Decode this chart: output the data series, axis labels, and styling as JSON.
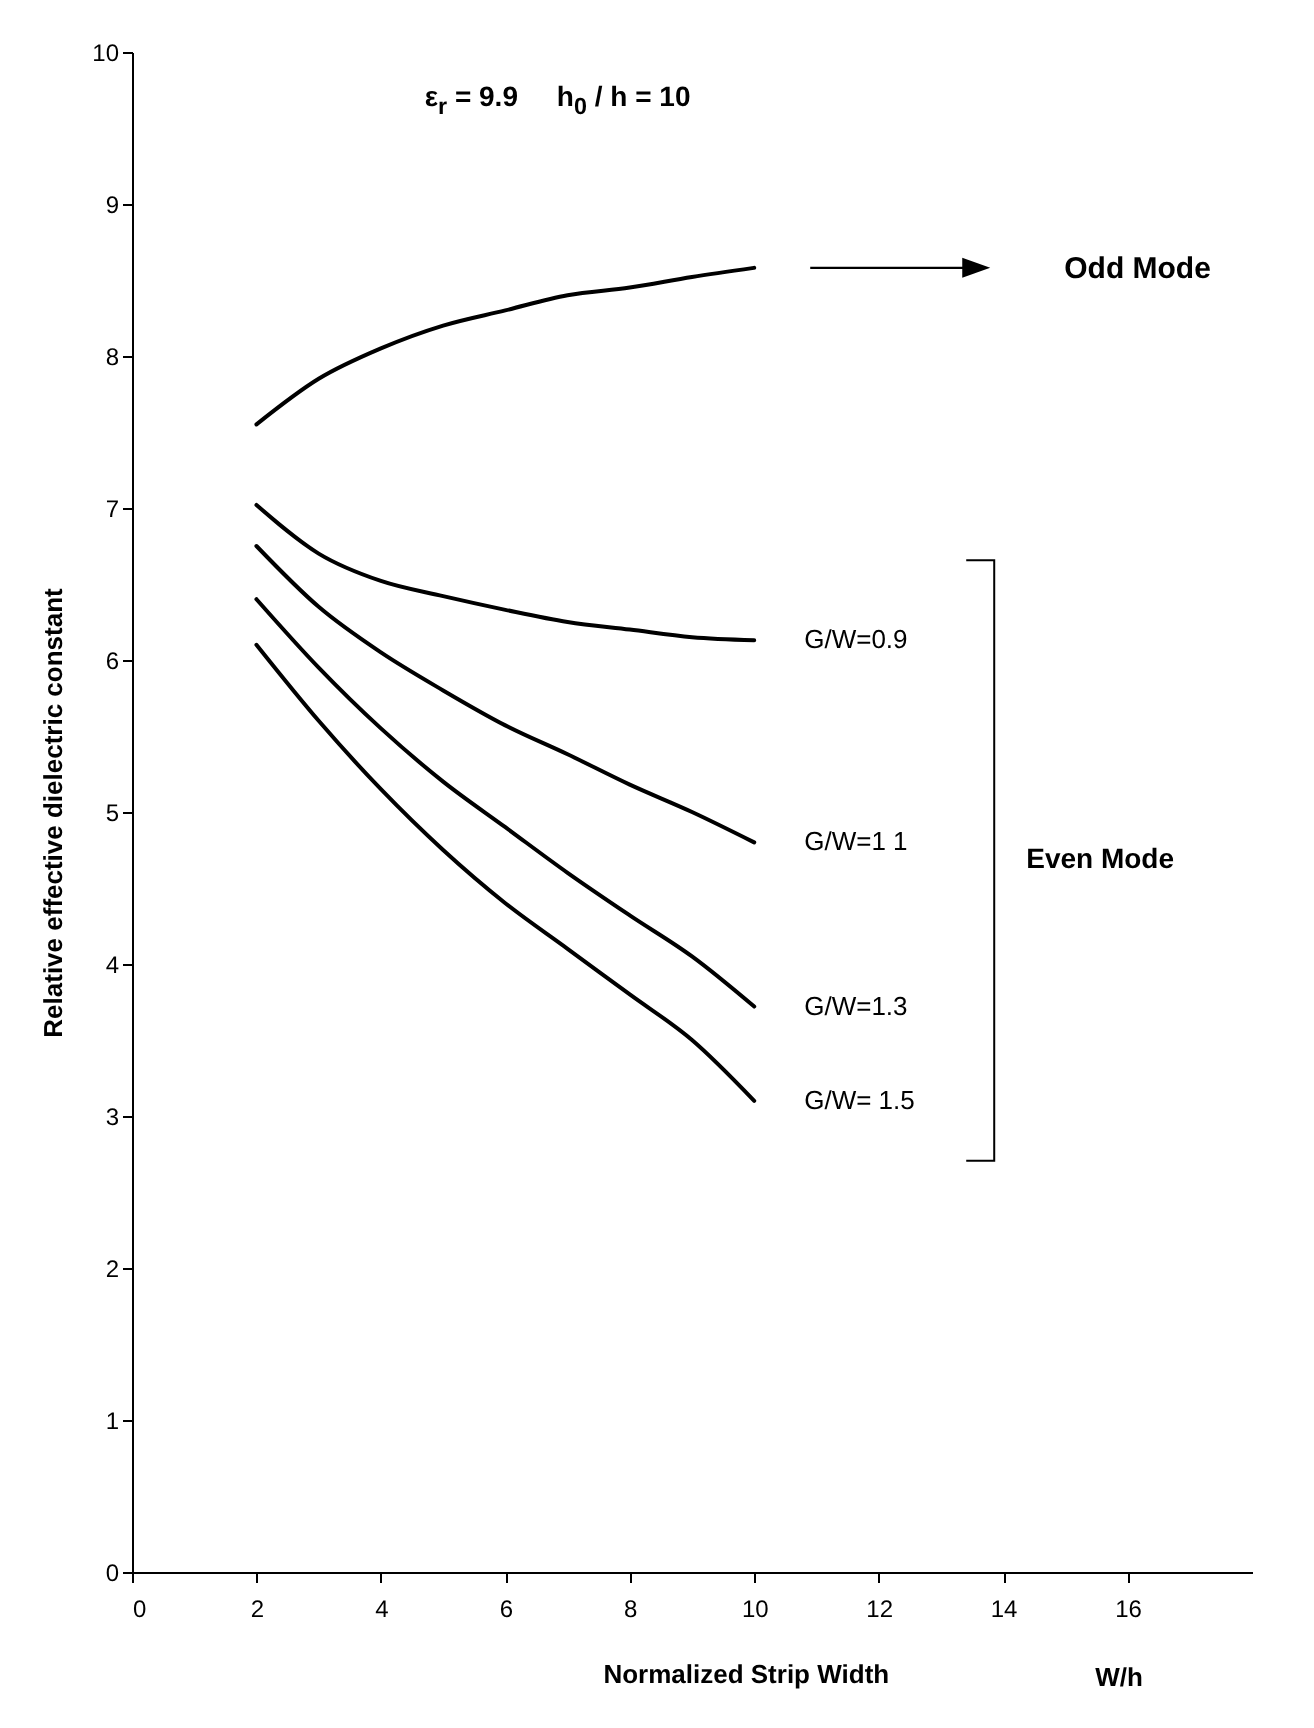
{
  "chart_data": {
    "type": "line",
    "title": "ε$_{r}$ = 9.9     h$_{0}$ / h = 10",
    "xlabel": "Normalized Strip Width",
    "ylabel": "Relative effective dielectric constant",
    "x": [
      2,
      3,
      4,
      5,
      6,
      7,
      8,
      9,
      10
    ],
    "series": [
      {
        "name": "Odd Mode",
        "color": "#000000",
        "values": [
          7.55,
          7.85,
          8.05,
          8.2,
          8.3,
          8.4,
          8.45,
          8.52,
          8.58
        ]
      },
      {
        "name": "G/W=0.9",
        "color": "#000000",
        "values": [
          7.02,
          6.7,
          6.52,
          6.42,
          6.33,
          6.25,
          6.2,
          6.15,
          6.13
        ]
      },
      {
        "name": "G/W=1 1",
        "color": "#000000",
        "values": [
          6.75,
          6.35,
          6.05,
          5.8,
          5.57,
          5.38,
          5.18,
          5.0,
          4.8
        ]
      },
      {
        "name": "G/W=1.3",
        "color": "#000000",
        "values": [
          6.4,
          5.95,
          5.55,
          5.2,
          4.9,
          4.6,
          4.32,
          4.05,
          3.72
        ]
      },
      {
        "name": "G/W= 1.5",
        "color": "#000000",
        "values": [
          6.1,
          5.6,
          5.15,
          4.75,
          4.4,
          4.1,
          3.8,
          3.5,
          3.1
        ]
      }
    ],
    "annotations": [
      "Even Mode",
      "W/h"
    ],
    "xlim": [
      0,
      18
    ],
    "ylim": [
      0,
      10
    ],
    "xticks": [
      0,
      2,
      4,
      6,
      8,
      10,
      12,
      14,
      16
    ],
    "yticks": [
      0,
      1,
      2,
      3,
      4,
      5,
      6,
      7,
      8,
      9,
      10
    ],
    "grid": false,
    "legend": false,
    "marker": "none",
    "line_style": "solid"
  }
}
